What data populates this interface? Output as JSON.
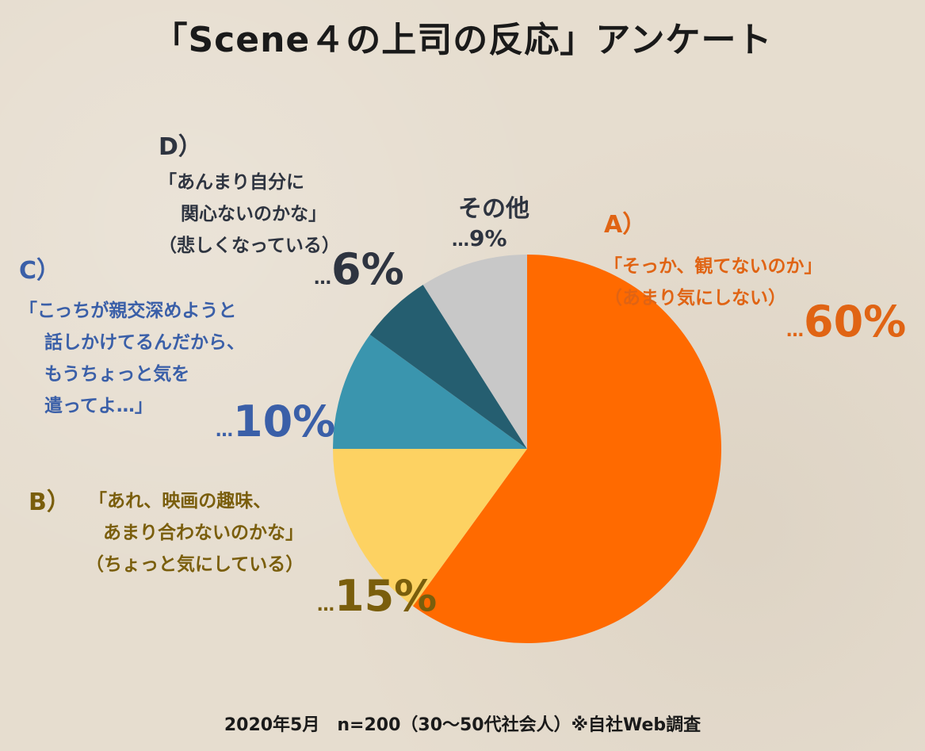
{
  "title": "「Scene４の上司の反応」アンケート",
  "footer": "2020年5月　n=200（30～50代社会人）※自社Web調査",
  "chart_data": {
    "type": "pie",
    "start_angle_deg": 0,
    "direction": "clockwise",
    "slices": [
      {
        "key": "A",
        "letter": "A）",
        "lines": [
          "「そっか、観てないのか」",
          "（あまり気にしない）"
        ],
        "value": 60,
        "pct_label": "60%",
        "color": "#ff6a00",
        "label_color": "#e06414"
      },
      {
        "key": "B",
        "letter": "B）",
        "lines": [
          "「あれ、映画の趣味、",
          "あまり合わないのかな」",
          "（ちょっと気にしている）"
        ],
        "value": 15,
        "pct_label": "15%",
        "color": "#fdd262",
        "label_color": "#7a5e0c"
      },
      {
        "key": "C",
        "letter": "C）",
        "lines": [
          "「こっちが親交深めようと",
          "話しかけてるんだから、",
          "もうちょっと気を",
          "遣ってよ…」"
        ],
        "value": 10,
        "pct_label": "10%",
        "color": "#3a95ae",
        "label_color": "#3a5fa8"
      },
      {
        "key": "D",
        "letter": "D）",
        "lines": [
          "「あんまり自分に",
          "関心ないのかな」",
          "（悲しくなっている）"
        ],
        "value": 6,
        "pct_label": "6%",
        "color": "#255e70",
        "label_color": "#2e3440"
      },
      {
        "key": "other",
        "letter": "その他",
        "lines": [],
        "value": 9,
        "pct_label": "9%",
        "color": "#c8c8c8",
        "label_color": "#2e3440"
      }
    ]
  }
}
